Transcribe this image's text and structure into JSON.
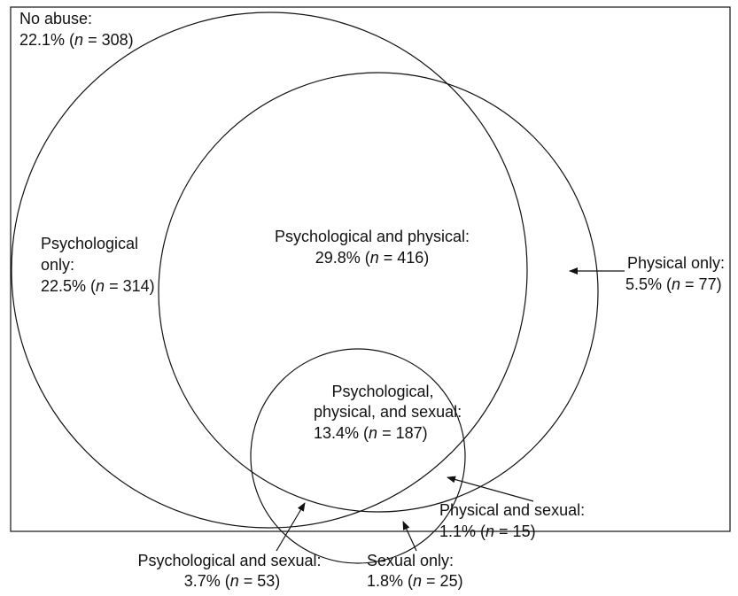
{
  "regions": [
    {
      "label_lines": [
        "No abuse:"
      ],
      "stat": "22.1% (n = 308)"
    },
    {
      "label_lines": [
        "Psychological",
        "only:"
      ],
      "stat": "22.5% (n = 314)"
    },
    {
      "label_lines": [
        "Psychological and physical:"
      ],
      "stat": "29.8% (n = 416)"
    },
    {
      "label_lines": [
        "Physical only:"
      ],
      "stat": "5.5% (n = 77)"
    },
    {
      "label_lines": [
        "Psychological,",
        "physical, and sexual:"
      ],
      "stat": "13.4% (n = 187)"
    },
    {
      "label_lines": [
        "Physical and sexual:"
      ],
      "stat": "1.1% (n = 15)"
    },
    {
      "label_lines": [
        "Psychological and sexual:"
      ],
      "stat": "3.7% (n = 53)"
    },
    {
      "label_lines": [
        "Sexual only:"
      ],
      "stat": "1.8% (n = 25)"
    }
  ]
}
